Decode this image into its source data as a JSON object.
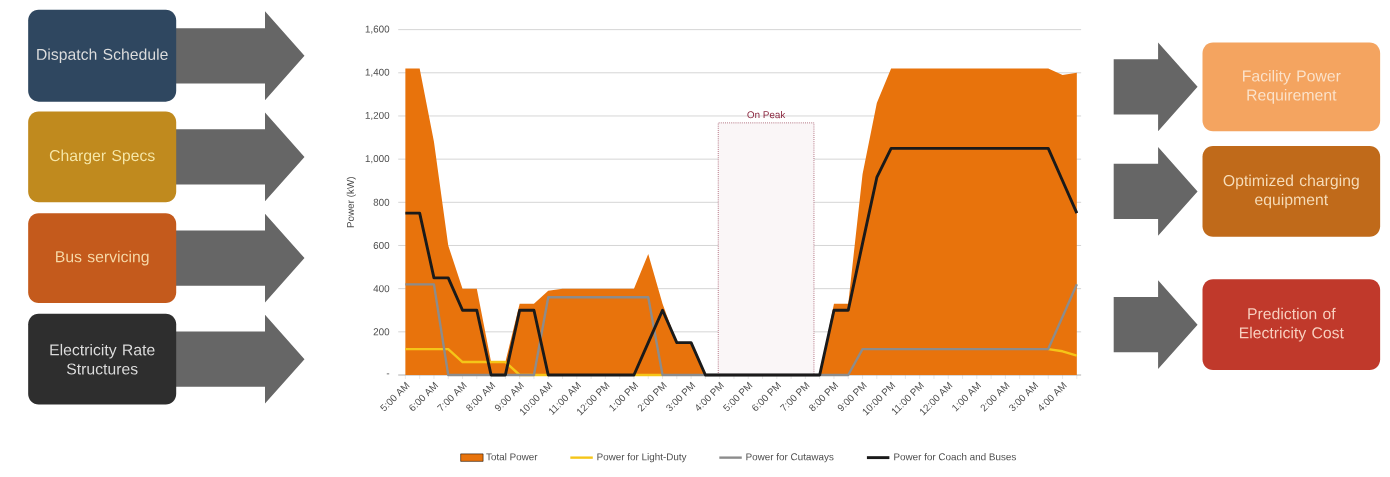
{
  "chart_data": {
    "type": "line",
    "ylabel": "Power (kW)",
    "categories": [
      "5:00 AM",
      null,
      "6:00 AM",
      null,
      "7:00 AM",
      null,
      "8:00 AM",
      null,
      "9:00 AM",
      null,
      "10:00 AM",
      null,
      "11:00 AM",
      null,
      "12:00 PM",
      null,
      "1:00 PM",
      null,
      "2:00 PM",
      null,
      "3:00 PM",
      null,
      "4:00 PM",
      null,
      "5:00 PM",
      null,
      "6:00 PM",
      null,
      "7:00 PM",
      null,
      "8:00 PM",
      null,
      "9:00 PM",
      null,
      "10:00 PM",
      null,
      "11:00 PM",
      null,
      "12:00 AM",
      null,
      "1:00 AM",
      null,
      "2:00 AM",
      null,
      "3:00 AM",
      null,
      "4:00 AM",
      null
    ],
    "series": [
      {
        "name": "Total Power",
        "type": "area",
        "color": "#e8730c",
        "values": [
          1420,
          1420,
          1080,
          600,
          400,
          400,
          60,
          60,
          330,
          330,
          390,
          400,
          400,
          400,
          400,
          400,
          400,
          560,
          330,
          150,
          150,
          0,
          0,
          0,
          0,
          0,
          0,
          0,
          0,
          0,
          330,
          330,
          930,
          1260,
          1420,
          1420,
          1420,
          1420,
          1420,
          1420,
          1420,
          1420,
          1420,
          1420,
          1420,
          1420,
          1390,
          1400
        ]
      },
      {
        "name": "Power for Light-Duty",
        "color": "#f5c518",
        "values": [
          120,
          120,
          120,
          120,
          60,
          60,
          60,
          60,
          0,
          0,
          0,
          null,
          null,
          null,
          null,
          null,
          0,
          0,
          0,
          null,
          null,
          null,
          null,
          null,
          null,
          null,
          null,
          null,
          null,
          null,
          null,
          null,
          null,
          null,
          null,
          null,
          null,
          null,
          null,
          null,
          null,
          null,
          null,
          null,
          null,
          120,
          110,
          90
        ]
      },
      {
        "name": "Power for Cutaways",
        "color": "#8c8c8c",
        "values": [
          420,
          420,
          420,
          0,
          0,
          0,
          0,
          0,
          0,
          0,
          360,
          360,
          360,
          360,
          360,
          360,
          360,
          360,
          0,
          0,
          0,
          0,
          0,
          0,
          0,
          0,
          0,
          0,
          0,
          0,
          0,
          0,
          120,
          120,
          120,
          120,
          120,
          120,
          120,
          120,
          120,
          120,
          120,
          120,
          120,
          120,
          270,
          420
        ]
      },
      {
        "name": "Power for Coach and Buses",
        "color": "#1a1a1a",
        "values": [
          750,
          750,
          450,
          450,
          300,
          300,
          0,
          0,
          300,
          300,
          0,
          0,
          0,
          0,
          0,
          0,
          0,
          150,
          300,
          150,
          150,
          0,
          0,
          0,
          0,
          0,
          0,
          0,
          0,
          0,
          300,
          300,
          610,
          915,
          1050,
          1050,
          1050,
          1050,
          1050,
          1050,
          1050,
          1050,
          1050,
          1050,
          1050,
          1050,
          900,
          750
        ]
      }
    ],
    "ylim": [
      0,
      1600
    ],
    "yticks": [
      {
        "value": 0,
        "label": "-"
      },
      {
        "value": 200,
        "label": "200"
      },
      {
        "value": 400,
        "label": "400"
      },
      {
        "value": 600,
        "label": "600"
      },
      {
        "value": 800,
        "label": "800"
      },
      {
        "value": 1000,
        "label": "1,000"
      },
      {
        "value": 1200,
        "label": "1,200"
      },
      {
        "value": 1400,
        "label": "1,400"
      },
      {
        "value": 1600,
        "label": "1,600"
      }
    ],
    "grid": "y",
    "legend": "bottom",
    "marker": "none",
    "bands": [
      {
        "axis": "x",
        "from": "4:00 PM",
        "to": "7:00 PM",
        "label": "On Peak",
        "color": "#8b2840"
      }
    ],
    "annotations": [
      "Dispatch Schedule",
      "Charger Specs",
      "Bus servicing",
      "Electricity Rate Structures",
      "Facility Power Requirement",
      "Optimized charging equipment",
      "Prediction of Electricity Cost"
    ]
  }
}
